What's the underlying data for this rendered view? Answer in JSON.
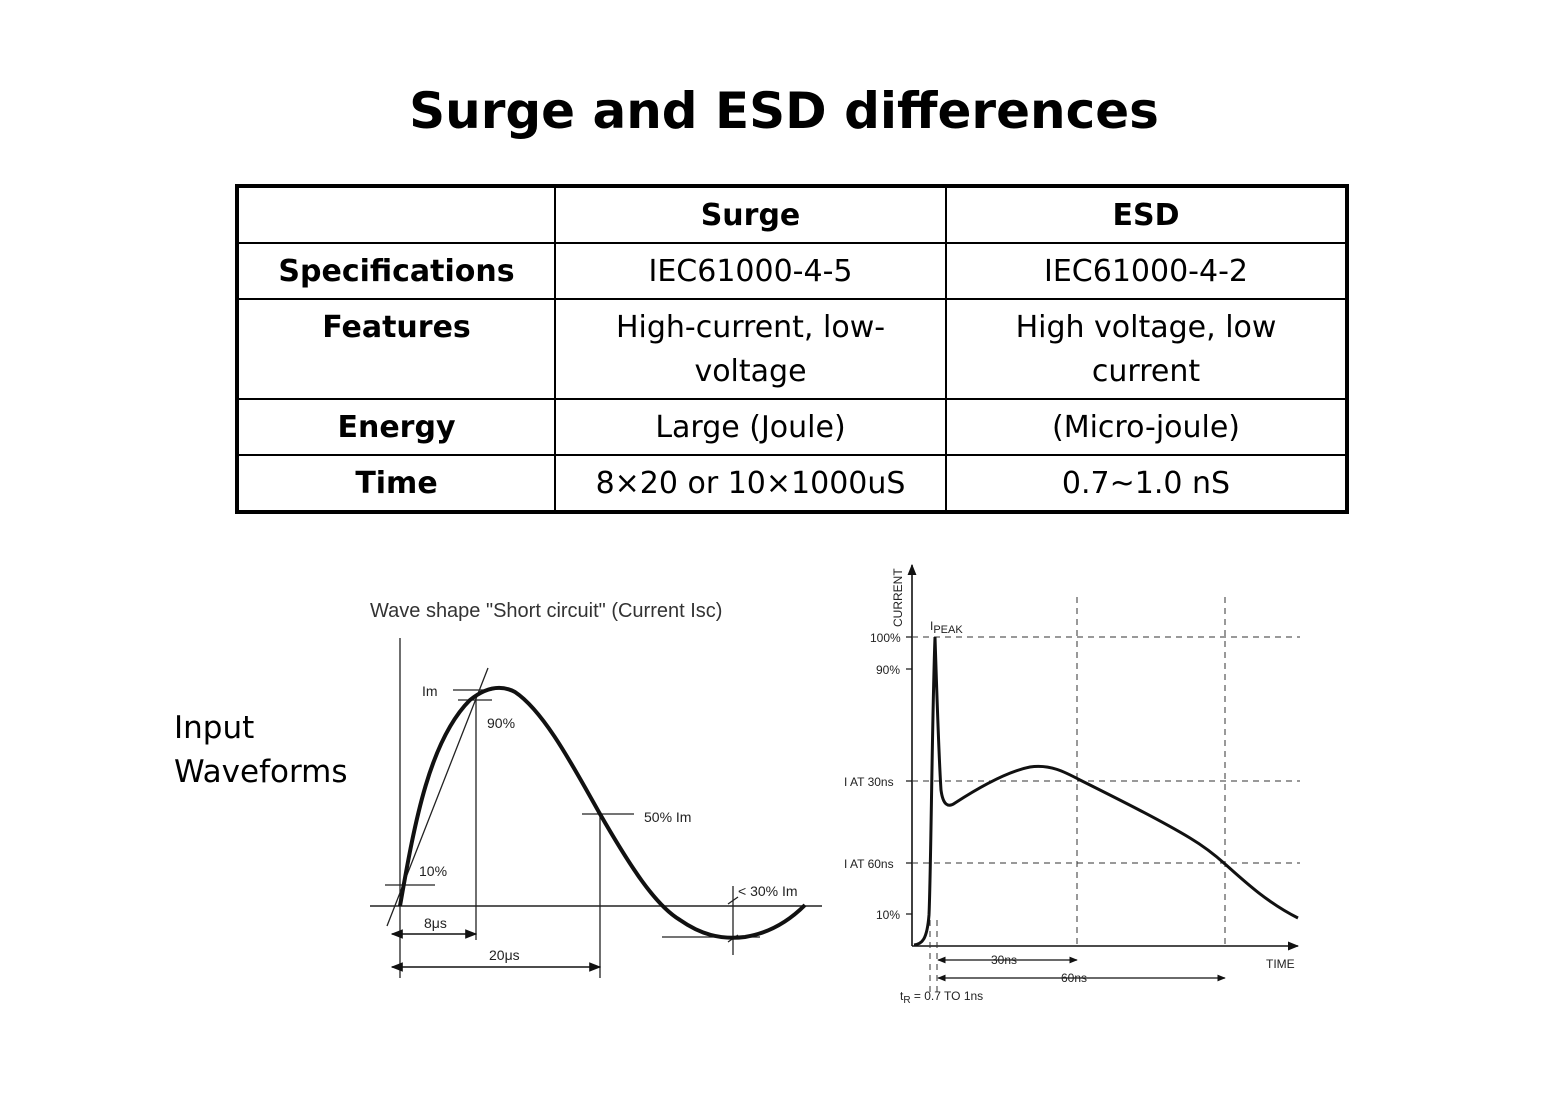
{
  "title": "Surge and ESD differences",
  "table": {
    "headers": [
      "",
      "Surge",
      "ESD"
    ],
    "rows": [
      {
        "label": "Specifications",
        "surge": "IEC61000-4-5",
        "esd": "IEC61000-4-2"
      },
      {
        "label": "Features",
        "surge": "High-current, low-voltage",
        "esd": "High voltage, low current"
      },
      {
        "label": "Energy",
        "surge": "Large (Joule)",
        "esd": "(Micro-joule)"
      },
      {
        "label": "Time",
        "surge": "8×20 or 10×1000uS",
        "esd": "0.7~1.0 nS"
      }
    ]
  },
  "side_label": {
    "line1": "Input",
    "line2": "Waveforms"
  },
  "surge_figure": {
    "caption": "Wave shape \"Short circuit\" (Current Isc)",
    "im": "Im",
    "p90": "90%",
    "p50": "50% Im",
    "p10": "10%",
    "p30": "< 30% Im",
    "t8": "8μs",
    "t20": "20μs"
  },
  "esd_figure": {
    "y_axis": "CURRENT",
    "peak_main": "I",
    "peak_sub": "PEAK",
    "p100": "100%",
    "p90": "90%",
    "i30": "I AT 30ns",
    "i60": "I AT 60ns",
    "p10": "10%",
    "x_axis": "TIME",
    "t30": "30ns",
    "t60": "60ns",
    "tr_main": "t",
    "tr_sub": "R",
    "tr_rest": " = 0.7 TO 1ns"
  }
}
